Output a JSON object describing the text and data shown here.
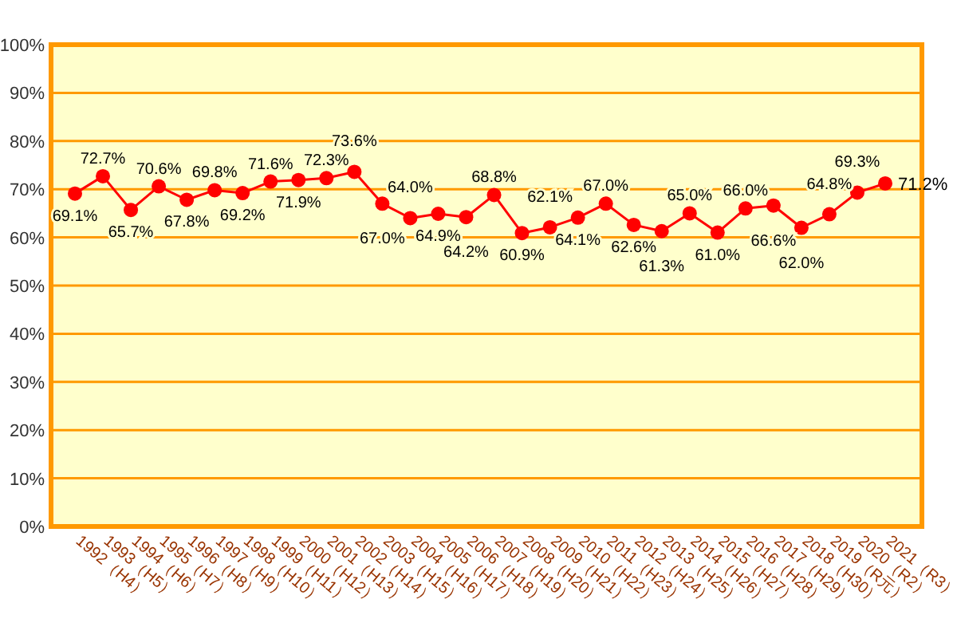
{
  "chart_data": {
    "type": "line",
    "categories": [
      "1992（H4）",
      "1993（H5）",
      "1994（H6）",
      "1995（H7）",
      "1996（H8）",
      "1997（H9）",
      "1998（H10）",
      "1999（H11）",
      "2000（H12）",
      "2001（H13）",
      "2002（H14）",
      "2003（H15）",
      "2004（H16）",
      "2005（H17）",
      "2006（H18）",
      "2007（H19）",
      "2008（H20）",
      "2009（H21）",
      "2010（H22）",
      "2011（H23）",
      "2012（H24）",
      "2013（H25）",
      "2014（H26）",
      "2015（H27）",
      "2016（H28）",
      "2017（H29）",
      "2018（H30）",
      "2019（R元）",
      "2020（R2）",
      "2021（R3）"
    ],
    "series": [
      {
        "color": "#ff0000",
        "values": [
          69.1,
          72.7,
          65.7,
          70.6,
          67.8,
          69.8,
          69.2,
          71.6,
          71.9,
          72.3,
          73.6,
          67.0,
          64.0,
          64.9,
          64.2,
          68.8,
          60.9,
          62.1,
          64.1,
          67.0,
          62.6,
          61.3,
          65.0,
          61.0,
          66.0,
          66.6,
          62.0,
          64.8,
          69.3,
          71.2
        ],
        "value_labels": [
          "69.1%",
          "72.7%",
          "65.7%",
          "70.6%",
          "67.8%",
          "69.8%",
          "69.2%",
          "71.6%",
          "71.9%",
          "72.3%",
          "73.6%",
          "67.0%",
          "64.0%",
          "64.9%",
          "64.2%",
          "68.8%",
          "60.9%",
          "62.1%",
          "64.1%",
          "67.0%",
          "62.6%",
          "61.3%",
          "65.0%",
          "61.0%",
          "66.0%",
          "66.6%",
          "62.0%",
          "64.8%",
          "69.3%",
          "71.2%"
        ]
      }
    ],
    "ylim": [
      0,
      100
    ],
    "yticks": [
      {
        "value": 0,
        "label": "0%"
      },
      {
        "value": 10,
        "label": "10%"
      },
      {
        "value": 20,
        "label": "20%"
      },
      {
        "value": 30,
        "label": "30%"
      },
      {
        "value": 40,
        "label": "40%"
      },
      {
        "value": 50,
        "label": "50%"
      },
      {
        "value": 60,
        "label": "60%"
      },
      {
        "value": 70,
        "label": "70%"
      },
      {
        "value": 80,
        "label": "80%"
      },
      {
        "value": 90,
        "label": "90%"
      },
      {
        "value": 100,
        "label": "100%"
      }
    ],
    "grid": "y",
    "marker": "circle",
    "line_style": "solid"
  }
}
